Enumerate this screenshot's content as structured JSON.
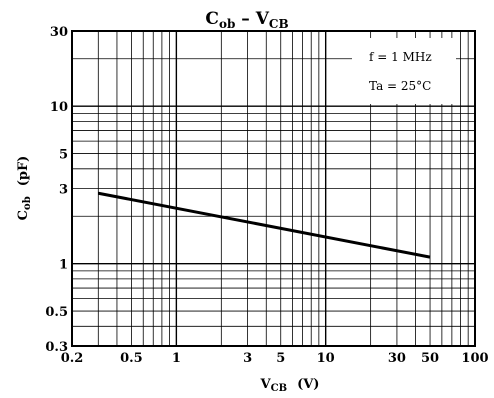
{
  "chart_data": {
    "type": "line",
    "title": {
      "main": "C",
      "sub1": "ob",
      "sep": " – ",
      "main2": "V",
      "sub2": "CB"
    },
    "xlabel": {
      "main": "V",
      "sub": "CB",
      "unit": "(V)"
    },
    "ylabel": {
      "main": "C",
      "sub": "ob",
      "unit": "(pF)"
    },
    "x_scale": "log",
    "y_scale": "log",
    "xlim": [
      0.2,
      100
    ],
    "ylim": [
      0.3,
      30
    ],
    "x_ticks": [
      0.2,
      0.5,
      1,
      3,
      5,
      10,
      30,
      50,
      100
    ],
    "x_tick_labels": [
      "0.2",
      "0.5",
      "1",
      "3",
      "5",
      "10",
      "30",
      "50",
      "100"
    ],
    "y_ticks": [
      0.3,
      0.5,
      1,
      3,
      5,
      10,
      30
    ],
    "y_tick_labels": [
      "0.3",
      "0.5",
      "1",
      "3",
      "5",
      "10",
      "30"
    ],
    "grid": true,
    "annotations": [
      "f = 1 MHz",
      "Ta = 25°C"
    ],
    "series": [
      {
        "x": [
          0.3,
          50
        ],
        "y": [
          2.8,
          1.1
        ]
      }
    ]
  }
}
